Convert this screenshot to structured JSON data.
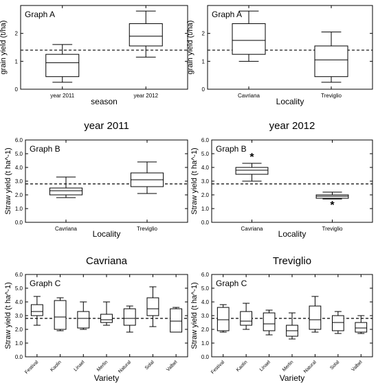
{
  "chart_data": [
    {
      "type": "box",
      "panel_label": "Graph A",
      "title": "",
      "xlabel": "season",
      "ylabel": "grain yield (t/ha)",
      "ylim": [
        0,
        3
      ],
      "yticks": [
        "0",
        "1",
        "2"
      ],
      "yticks_values": [
        0,
        1,
        2
      ],
      "reference_line": 1.4,
      "categories": [
        "year 2011",
        "year 2012"
      ],
      "boxes": [
        {
          "whisker_low": 0.25,
          "q1": 0.45,
          "median": 0.95,
          "q3": 1.25,
          "whisker_high": 1.6
        },
        {
          "whisker_low": 1.15,
          "q1": 1.55,
          "median": 1.9,
          "q3": 2.35,
          "whisker_high": 2.8
        }
      ],
      "outliers": []
    },
    {
      "type": "box",
      "panel_label": "Graph A",
      "title": "",
      "xlabel": "Locality",
      "ylabel": "grain yield (t/ha)",
      "ylim": [
        0,
        3
      ],
      "yticks": [
        "0",
        "1",
        "2"
      ],
      "yticks_values": [
        0,
        1,
        2
      ],
      "reference_line": 1.4,
      "categories": [
        "Cavriana",
        "Treviglio"
      ],
      "boxes": [
        {
          "whisker_low": 1.0,
          "q1": 1.25,
          "median": 1.75,
          "q3": 2.35,
          "whisker_high": 2.8
        },
        {
          "whisker_low": 0.25,
          "q1": 0.45,
          "median": 1.05,
          "q3": 1.55,
          "whisker_high": 2.05
        }
      ],
      "outliers": []
    },
    {
      "type": "box",
      "panel_label": "Graph B",
      "title": "year 2011",
      "xlabel": "Locality",
      "ylabel": "Straw yield (t ha^-1)",
      "ylim": [
        0,
        6
      ],
      "yticks": [
        "0.0",
        "1.0",
        "2.0",
        "3.0",
        "4.0",
        "5.0",
        "6.0"
      ],
      "yticks_values": [
        0,
        1,
        2,
        3,
        4,
        5,
        6
      ],
      "reference_line": 2.8,
      "categories": [
        "Cavriana",
        "Treviglio"
      ],
      "boxes": [
        {
          "whisker_low": 1.8,
          "q1": 2.0,
          "median": 2.3,
          "q3": 2.5,
          "whisker_high": 3.3
        },
        {
          "whisker_low": 2.1,
          "q1": 2.6,
          "median": 3.1,
          "q3": 3.6,
          "whisker_high": 4.4
        }
      ],
      "outliers": []
    },
    {
      "type": "box",
      "panel_label": "Graph B",
      "title": "year 2012",
      "xlabel": "Locality",
      "ylabel": "Straw yield (t ha^-1)",
      "ylim": [
        0,
        6
      ],
      "yticks": [
        "0.0",
        "1.0",
        "2.0",
        "3.0",
        "4.0",
        "5.0",
        "6.0"
      ],
      "yticks_values": [
        0,
        1,
        2,
        3,
        4,
        5,
        6
      ],
      "reference_line": 2.8,
      "categories": [
        "Cavriana",
        "Treviglio"
      ],
      "boxes": [
        {
          "whisker_low": 3.0,
          "q1": 3.5,
          "median": 3.8,
          "q3": 4.0,
          "whisker_high": 4.3
        },
        {
          "whisker_low": 1.7,
          "q1": 1.75,
          "median": 1.9,
          "q3": 2.0,
          "whisker_high": 2.2
        }
      ],
      "outliers": [
        {
          "category": "Cavriana",
          "value": 4.9
        },
        {
          "category": "Treviglio",
          "value": 1.4
        }
      ]
    },
    {
      "type": "box",
      "panel_label": "Graph C",
      "title": "Cavriana",
      "xlabel": "Variety",
      "ylabel": "Straw yield (t ha^-1)",
      "ylim": [
        0,
        6
      ],
      "yticks": [
        "0.0",
        "1.0",
        "2.0",
        "3.0",
        "4.0",
        "5.0",
        "6.0"
      ],
      "yticks_values": [
        0,
        1,
        2,
        3,
        4,
        5,
        6
      ],
      "reference_line": 2.8,
      "categories": [
        "Festival",
        "Kaolin",
        "Linael",
        "Merlin",
        "Natural",
        "Solal",
        "Valbel"
      ],
      "boxes": [
        {
          "whisker_low": 2.3,
          "q1": 3.0,
          "median": 3.3,
          "q3": 3.8,
          "whisker_high": 4.4
        },
        {
          "whisker_low": 1.9,
          "q1": 2.0,
          "median": 2.9,
          "q3": 4.1,
          "whisker_high": 4.3
        },
        {
          "whisker_low": 2.0,
          "q1": 2.1,
          "median": 2.8,
          "q3": 3.3,
          "whisker_high": 4.0
        },
        {
          "whisker_low": 2.3,
          "q1": 2.5,
          "median": 2.7,
          "q3": 3.1,
          "whisker_high": 4.0
        },
        {
          "whisker_low": 1.8,
          "q1": 2.3,
          "median": 2.8,
          "q3": 3.5,
          "whisker_high": 3.7
        },
        {
          "whisker_low": 2.2,
          "q1": 3.0,
          "median": 3.5,
          "q3": 4.3,
          "whisker_high": 5.1
        },
        {
          "whisker_low": 1.8,
          "q1": 1.8,
          "median": 2.6,
          "q3": 3.5,
          "whisker_high": 3.6
        }
      ],
      "outliers": []
    },
    {
      "type": "box",
      "panel_label": "Graph C",
      "title": "Treviglio",
      "xlabel": "Variety",
      "ylabel": "Straw yield (t ha^-1)",
      "ylim": [
        0,
        6
      ],
      "yticks": [
        "0.0",
        "1.0",
        "2.0",
        "3.0",
        "4.0",
        "5.0",
        "6.0"
      ],
      "yticks_values": [
        0,
        1,
        2,
        3,
        4,
        5,
        6
      ],
      "reference_line": 2.8,
      "categories": [
        "Festival",
        "Kaolin",
        "Linael",
        "Merlin",
        "Natural",
        "Solal",
        "Valbel"
      ],
      "boxes": [
        {
          "whisker_low": 1.8,
          "q1": 1.9,
          "median": 2.7,
          "q3": 3.6,
          "whisker_high": 3.8
        },
        {
          "whisker_low": 2.0,
          "q1": 2.3,
          "median": 2.6,
          "q3": 3.3,
          "whisker_high": 3.9
        },
        {
          "whisker_low": 1.6,
          "q1": 1.9,
          "median": 2.4,
          "q3": 3.2,
          "whisker_high": 3.4
        },
        {
          "whisker_low": 1.3,
          "q1": 1.5,
          "median": 1.9,
          "q3": 2.3,
          "whisker_high": 3.2
        },
        {
          "whisker_low": 1.8,
          "q1": 2.0,
          "median": 2.7,
          "q3": 3.7,
          "whisker_high": 4.4
        },
        {
          "whisker_low": 1.7,
          "q1": 1.9,
          "median": 2.5,
          "q3": 3.0,
          "whisker_high": 3.3
        },
        {
          "whisker_low": 1.7,
          "q1": 1.8,
          "median": 2.1,
          "q3": 2.5,
          "whisker_high": 3.0
        }
      ],
      "outliers": []
    }
  ]
}
